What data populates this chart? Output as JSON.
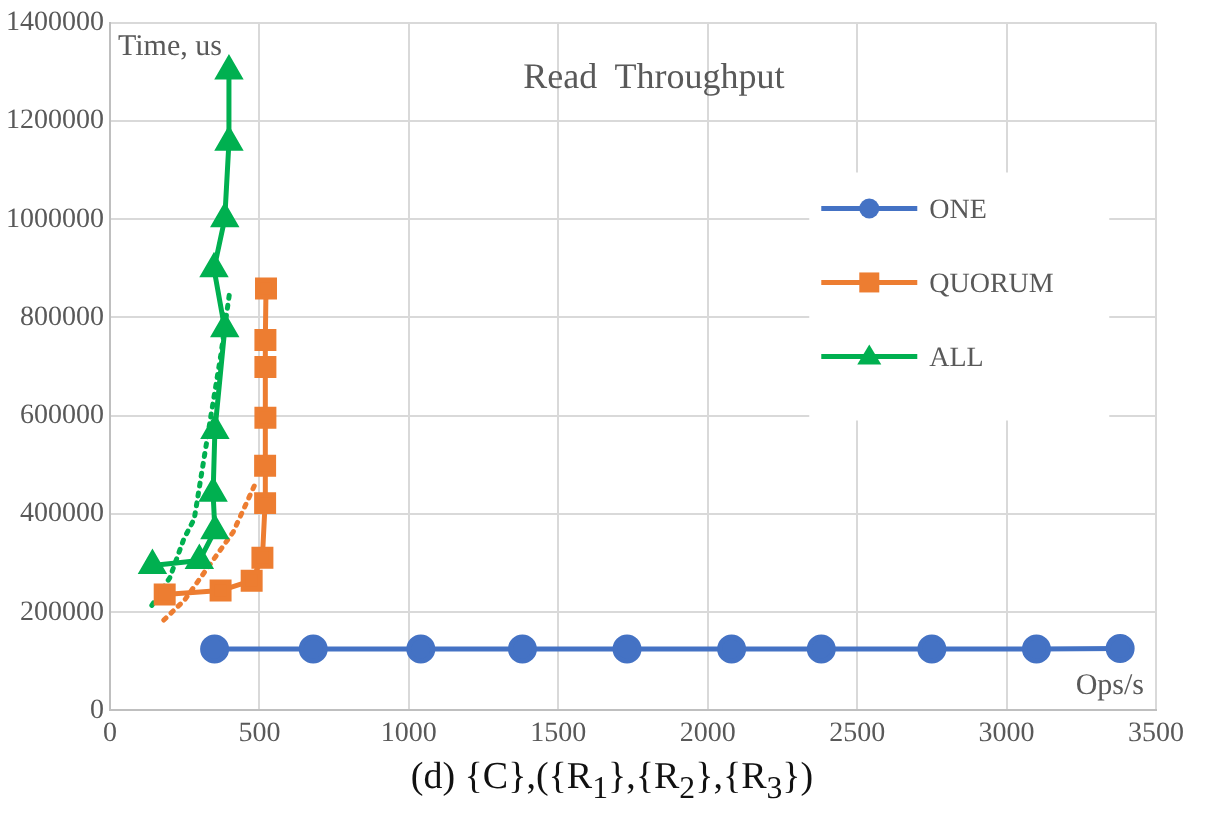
{
  "chart_data": {
    "type": "line",
    "title": "Read  Throughput",
    "xlabel": "Ops/s",
    "ylabel": "Time, us",
    "annotations": [
      "(d) {C},({R$_{1}$},{R$_{2}$},{R$_{3}$})"
    ],
    "series": [
      {
        "name": "ONE",
        "color": "#4472c4",
        "marker": "circle",
        "x": [
          350,
          680,
          1040,
          1380,
          1730,
          2080,
          2380,
          2750,
          3100,
          3380
        ],
        "values": [
          125000,
          125000,
          125000,
          125000,
          125000,
          125000,
          125000,
          125000,
          125000,
          126000
        ]
      },
      {
        "name": "QUORUM",
        "color": "#ed7d31",
        "marker": "square",
        "x": [
          183,
          370,
          474,
          510,
          519,
          519,
          520,
          520,
          520,
          522
        ],
        "values": [
          236000,
          244000,
          264000,
          311000,
          422000,
          498000,
          596000,
          699000,
          754000,
          859000
        ]
      },
      {
        "name": "ALL",
        "color": "#00b050",
        "marker": "triangle",
        "x": [
          142,
          299,
          351,
          345,
          351,
          384,
          348,
          384,
          398,
          398
        ],
        "values": [
          295000,
          305000,
          366000,
          442000,
          570000,
          777000,
          899000,
          1001000,
          1157000,
          1302000
        ]
      },
      {
        "type": "line",
        "color": "#ed7d31",
        "marker": "none",
        "line_style": "dotted",
        "x": [
          180,
          250,
          318,
          412,
          488
        ],
        "values": [
          184000,
          225000,
          283000,
          363000,
          464000
        ]
      },
      {
        "type": "line",
        "color": "#00b050",
        "marker": "none",
        "line_style": "dotted",
        "x": [
          140,
          200,
          247,
          282,
          330,
          370,
          400
        ],
        "values": [
          214000,
          270000,
          349000,
          390000,
          571000,
          720000,
          850000
        ]
      }
    ],
    "xlim": [
      0,
      3500
    ],
    "xticks": [
      0,
      500,
      1000,
      1500,
      2000,
      2500,
      3000,
      3500
    ],
    "ylim": [
      0,
      1400000
    ],
    "yticks": [
      0,
      200000,
      400000,
      600000,
      800000,
      1000000,
      1200000,
      1400000
    ],
    "grid": true,
    "legend": "right",
    "line_style": "solid"
  }
}
